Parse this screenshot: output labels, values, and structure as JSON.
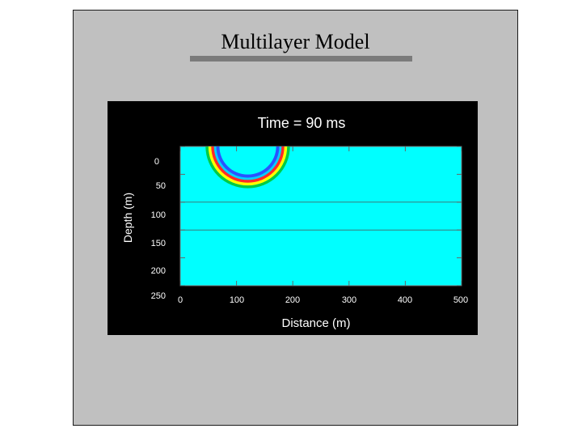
{
  "slide": {
    "title": "Multilayer Model",
    "background": "#c0c0c0",
    "rule_color": "#7b7b7b"
  },
  "figure": {
    "title": "Time = 90 ms",
    "xlabel": "Distance (m)",
    "ylabel": "Depth (m)",
    "xlim": [
      0,
      500
    ],
    "ylim": [
      0,
      250
    ],
    "x_ticks": [
      "0",
      "100",
      "200",
      "300",
      "400",
      "500"
    ],
    "y_ticks": [
      "0",
      "50",
      "100",
      "150",
      "200",
      "250"
    ],
    "medium_color": "#00ffff",
    "layer_interfaces_depth_m": [
      100,
      150
    ],
    "wavefront": {
      "center_x_m": 120,
      "center_depth_m": 0,
      "bands": [
        {
          "color": "#00cc44",
          "radius_m": 75
        },
        {
          "color": "#ffff00",
          "radius_m": 70
        },
        {
          "color": "#ff2a2a",
          "radius_m": 65
        },
        {
          "color": "#00d0ff",
          "radius_m": 60
        },
        {
          "color": "#2a52ff",
          "radius_m": 56
        }
      ]
    }
  }
}
